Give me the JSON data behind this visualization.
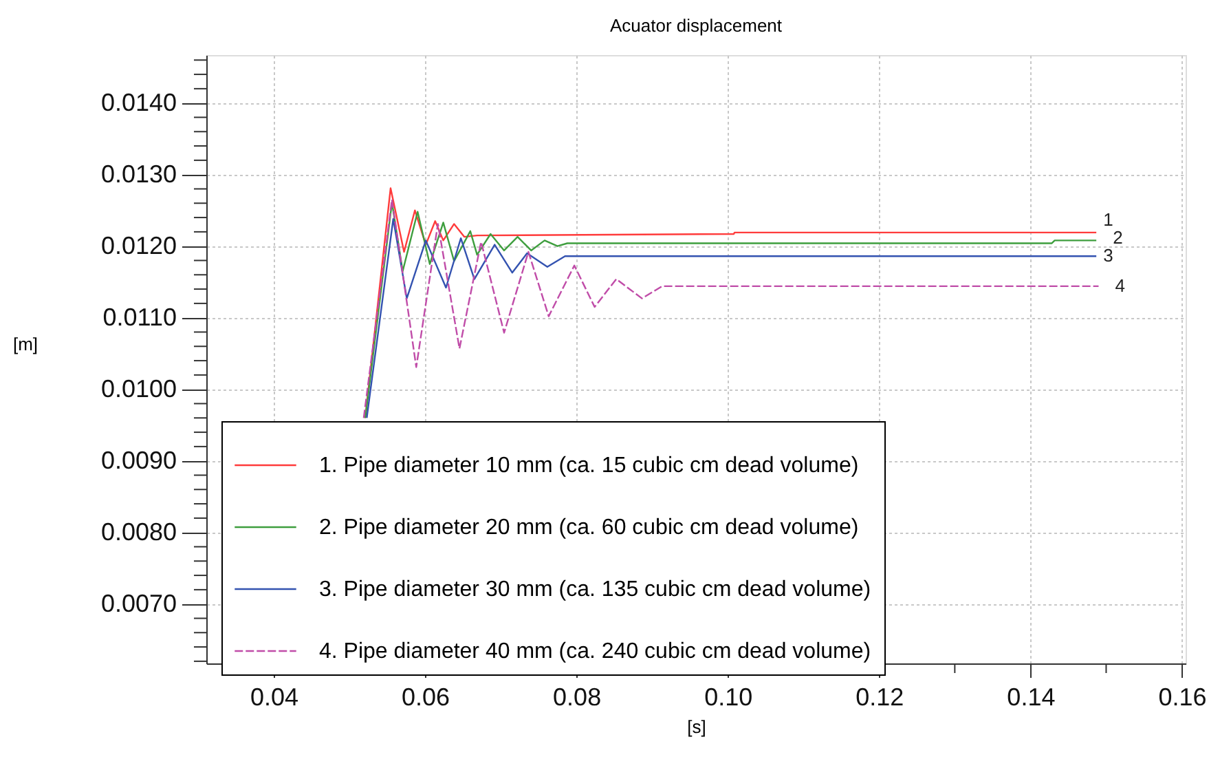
{
  "chart_data": {
    "type": "line",
    "title": "Acuator displacement",
    "xlabel": "[s]",
    "ylabel": "[m]",
    "xlim": [
      0.0311,
      0.1605
    ],
    "ylim": [
      0.00617,
      0.01467
    ],
    "xticks": [
      {
        "value": 0.04,
        "label": "0.04"
      },
      {
        "value": 0.05,
        "label": null
      },
      {
        "value": 0.06,
        "label": "0.06"
      },
      {
        "value": 0.07,
        "label": null
      },
      {
        "value": 0.08,
        "label": "0.08"
      },
      {
        "value": 0.09,
        "label": null
      },
      {
        "value": 0.1,
        "label": "0.10"
      },
      {
        "value": 0.11,
        "label": null
      },
      {
        "value": 0.12,
        "label": "0.12"
      },
      {
        "value": 0.13,
        "label": null
      },
      {
        "value": 0.14,
        "label": "0.14"
      },
      {
        "value": 0.15,
        "label": null
      },
      {
        "value": 0.16,
        "label": "0.16"
      }
    ],
    "yticks": [
      {
        "value": 0.0062,
        "label": null
      },
      {
        "value": 0.0064,
        "label": null
      },
      {
        "value": 0.0066,
        "label": null
      },
      {
        "value": 0.0068,
        "label": null
      },
      {
        "value": 0.007,
        "label": "0.0070"
      },
      {
        "value": 0.0072,
        "label": null
      },
      {
        "value": 0.0074,
        "label": null
      },
      {
        "value": 0.0076,
        "label": null
      },
      {
        "value": 0.0078,
        "label": null
      },
      {
        "value": 0.008,
        "label": "0.0080"
      },
      {
        "value": 0.0082,
        "label": null
      },
      {
        "value": 0.0084,
        "label": null
      },
      {
        "value": 0.0086,
        "label": null
      },
      {
        "value": 0.0088,
        "label": null
      },
      {
        "value": 0.009,
        "label": "0.0090"
      },
      {
        "value": 0.0092,
        "label": null
      },
      {
        "value": 0.0094,
        "label": null
      },
      {
        "value": 0.0096,
        "label": null
      },
      {
        "value": 0.0098,
        "label": null
      },
      {
        "value": 0.01,
        "label": "0.0100"
      },
      {
        "value": 0.0102,
        "label": null
      },
      {
        "value": 0.0104,
        "label": null
      },
      {
        "value": 0.0106,
        "label": null
      },
      {
        "value": 0.0108,
        "label": null
      },
      {
        "value": 0.011,
        "label": "0.0110"
      },
      {
        "value": 0.0112,
        "label": null
      },
      {
        "value": 0.0114,
        "label": null
      },
      {
        "value": 0.0116,
        "label": null
      },
      {
        "value": 0.0118,
        "label": null
      },
      {
        "value": 0.012,
        "label": "0.0120"
      },
      {
        "value": 0.0122,
        "label": null
      },
      {
        "value": 0.0124,
        "label": null
      },
      {
        "value": 0.0126,
        "label": null
      },
      {
        "value": 0.0128,
        "label": null
      },
      {
        "value": 0.013,
        "label": "0.0130"
      },
      {
        "value": 0.0132,
        "label": null
      },
      {
        "value": 0.0134,
        "label": null
      },
      {
        "value": 0.0136,
        "label": null
      },
      {
        "value": 0.0138,
        "label": null
      },
      {
        "value": 0.014,
        "label": "0.0140"
      },
      {
        "value": 0.0142,
        "label": null
      },
      {
        "value": 0.0144,
        "label": null
      },
      {
        "value": 0.0146,
        "label": null
      }
    ],
    "grid": true,
    "legend": "bottom",
    "marker": "none",
    "series": [
      {
        "name": "1. Pipe diameter 10 mm (ca. 15 cubic cm dead volume)",
        "color": "#ff3b3b",
        "line_style": "solid",
        "x": [
          0.0521,
          0.05545,
          0.05723,
          0.05866,
          0.0601,
          0.06134,
          0.06241,
          0.06384,
          0.0652,
          0.0669,
          0.1008,
          0.1009,
          0.1487
        ],
        "values": [
          0.0096,
          0.01281,
          0.01192,
          0.0125,
          0.01202,
          0.01235,
          0.01208,
          0.01231,
          0.01213,
          0.01215,
          0.01217,
          0.01219,
          0.01219
        ]
      },
      {
        "name": "2. Pipe diameter 20 mm (ca. 60 cubic cm dead volume)",
        "color": "#3e9e3e",
        "line_style": "solid",
        "x": [
          0.0521,
          0.05563,
          0.05705,
          0.05902,
          0.06063,
          0.06241,
          0.06384,
          0.06598,
          0.06688,
          0.06866,
          0.07045,
          0.07223,
          0.07402,
          0.0758,
          0.0775,
          0.0788,
          0.1428,
          0.1432,
          0.1487
        ],
        "values": [
          0.0096,
          0.01261,
          0.01165,
          0.01248,
          0.01175,
          0.01233,
          0.01179,
          0.01221,
          0.01188,
          0.01217,
          0.01194,
          0.01213,
          0.01194,
          0.01208,
          0.012,
          0.01204,
          0.01204,
          0.01208,
          0.01208
        ]
      },
      {
        "name": "3. Pipe diameter 30 mm (ca. 135 cubic cm dead volume)",
        "color": "#3352b0",
        "line_style": "solid",
        "x": [
          0.0523,
          0.0558,
          0.05759,
          0.0601,
          0.06277,
          0.06473,
          0.06652,
          0.0692,
          0.07152,
          0.07348,
          0.07616,
          0.0785,
          0.1487
        ],
        "values": [
          0.0096,
          0.01238,
          0.01127,
          0.01208,
          0.01142,
          0.01211,
          0.01154,
          0.01202,
          0.01163,
          0.0119,
          0.01171,
          0.01186,
          0.01186
        ]
      },
      {
        "name": "4. Pipe diameter 40 mm (ca. 240 cubic cm dead volume)",
        "color": "#c04ca8",
        "line_style": "dashed",
        "x": [
          0.0519,
          0.05563,
          0.05884,
          0.0617,
          0.06455,
          0.06741,
          0.07045,
          0.07366,
          0.07634,
          0.07973,
          0.08241,
          0.08527,
          0.08866,
          0.09134,
          0.149
        ],
        "values": [
          0.0096,
          0.01265,
          0.01031,
          0.01231,
          0.01057,
          0.01206,
          0.01079,
          0.01192,
          0.01102,
          0.01173,
          0.01115,
          0.01154,
          0.01127,
          0.01144,
          0.01144
        ]
      }
    ],
    "annotations": [
      "1",
      "2",
      "3",
      "4"
    ]
  }
}
